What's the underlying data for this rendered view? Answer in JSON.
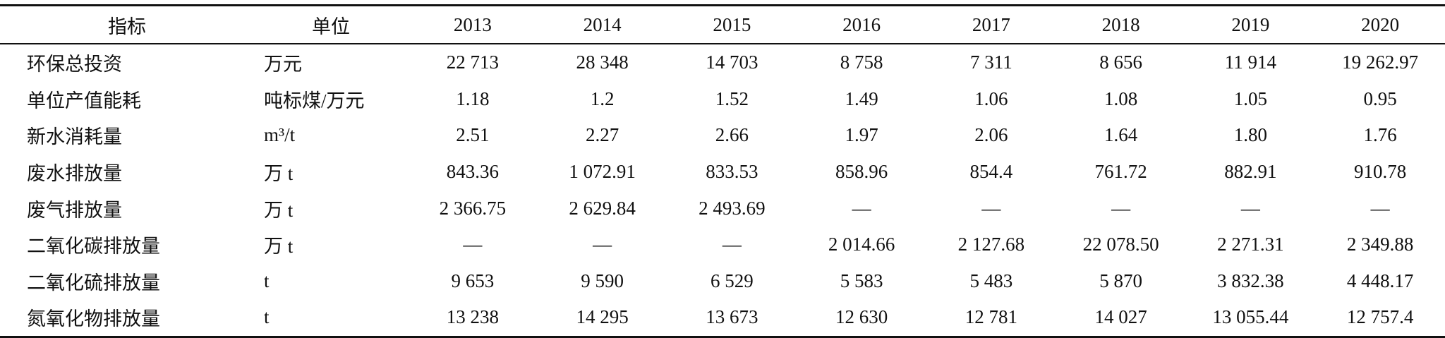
{
  "table": {
    "header": [
      "指标",
      "单位",
      "2013",
      "2014",
      "2015",
      "2016",
      "2017",
      "2018",
      "2019",
      "2020"
    ],
    "rows": [
      [
        "环保总投资",
        "万元",
        "22 713",
        "28 348",
        "14 703",
        "8 758",
        "7 311",
        "8 656",
        "11 914",
        "19 262.97"
      ],
      [
        "单位产值能耗",
        "吨标煤/万元",
        "1.18",
        "1.2",
        "1.52",
        "1.49",
        "1.06",
        "1.08",
        "1.05",
        "0.95"
      ],
      [
        "新水消耗量",
        "m³/t",
        "2.51",
        "2.27",
        "2.66",
        "1.97",
        "2.06",
        "1.64",
        "1.80",
        "1.76"
      ],
      [
        "废水排放量",
        "万 t",
        "843.36",
        "1 072.91",
        "833.53",
        "858.96",
        "854.4",
        "761.72",
        "882.91",
        "910.78"
      ],
      [
        "废气排放量",
        "万 t",
        "2 366.75",
        "2 629.84",
        "2 493.69",
        "—",
        "—",
        "—",
        "—",
        "—"
      ],
      [
        "二氧化碳排放量",
        "万 t",
        "—",
        "—",
        "—",
        "2 014.66",
        "2 127.68",
        "22 078.50",
        "2 271.31",
        "2 349.88"
      ],
      [
        "二氧化硫排放量",
        "t",
        "9 653",
        "9 590",
        "6 529",
        "5 583",
        "5 483",
        "5 870",
        "3 832.38",
        "4 448.17"
      ],
      [
        "氮氧化物排放量",
        "t",
        "13 238",
        "14 295",
        "13 673",
        "12 630",
        "12 781",
        "14 027",
        "13 055.44",
        "12 757.4"
      ]
    ]
  }
}
